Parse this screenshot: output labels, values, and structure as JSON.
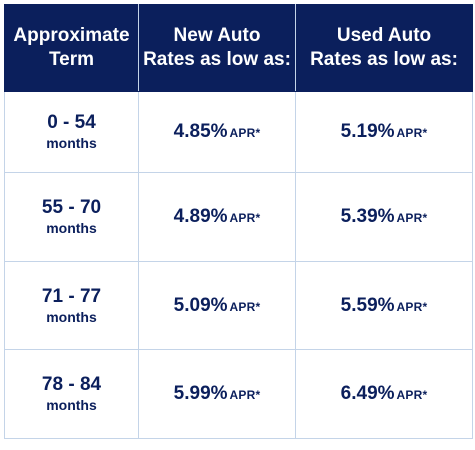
{
  "header": {
    "term": [
      "Approximate",
      "Term"
    ],
    "new_auto": [
      "New Auto",
      "Rates as low as:"
    ],
    "used_auto": [
      "Used Auto",
      "Rates as low as:"
    ]
  },
  "rows": [
    {
      "term_range": "0 - 54",
      "term_unit": "months",
      "new_rate": "4.85%",
      "new_unit": "APR*",
      "used_rate": "5.19%",
      "used_unit": "APR*"
    },
    {
      "term_range": "55 - 70",
      "term_unit": "months",
      "new_rate": "4.89%",
      "new_unit": "APR*",
      "used_rate": "5.39%",
      "used_unit": "APR*"
    },
    {
      "term_range": "71 - 77",
      "term_unit": "months",
      "new_rate": "5.09%",
      "new_unit": "APR*",
      "used_rate": "5.59%",
      "used_unit": "APR*"
    },
    {
      "term_range": "78 - 84",
      "term_unit": "months",
      "new_rate": "5.99%",
      "new_unit": "APR*",
      "used_rate": "6.49%",
      "used_unit": "APR*"
    }
  ],
  "colors": {
    "header_bg": "#0b1f5c",
    "header_text": "#ffffff",
    "body_text": "#0b1f5c",
    "border": "#c4d4e8"
  }
}
